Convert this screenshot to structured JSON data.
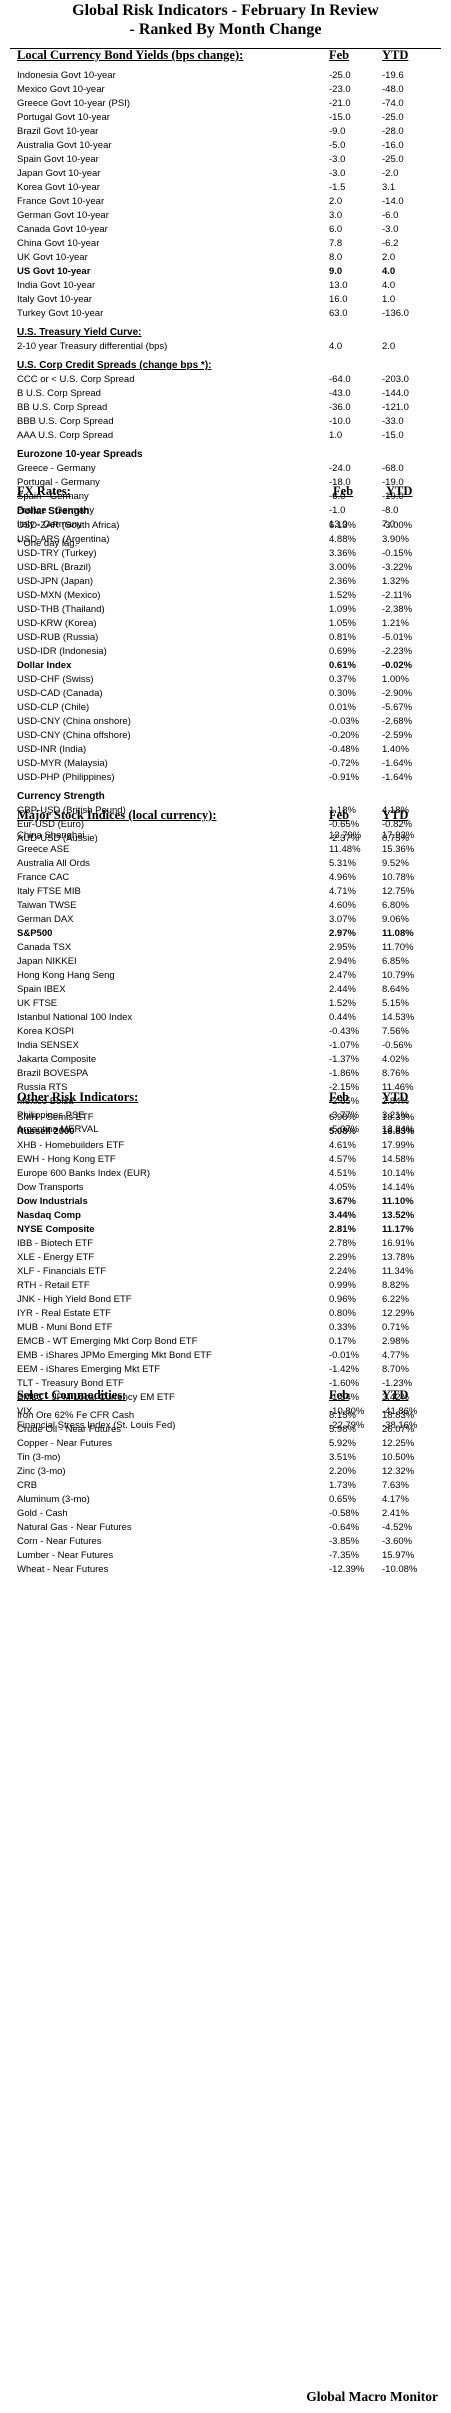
{
  "header": {
    "title_line1": "Global Risk Indicators - February In Review",
    "title_line2": "- Ranked By Month Change"
  },
  "footer": {
    "brand": "Global Macro Monitor"
  },
  "sections": [
    {
      "id": "bonds",
      "title": "Local Currency Bond Yields (bps change):",
      "col1": "Feb",
      "col2": "YTD",
      "blocks": [
        {
          "rows": [
            {
              "name": "Indonesia Govt 10-year",
              "v1": "-25.0",
              "v2": "-19.6"
            },
            {
              "name": "Mexico Govt 10-year",
              "v1": "-23.0",
              "v2": "-48.0"
            },
            {
              "name": "Greece Govt 10-year (PSI)",
              "v1": "-21.0",
              "v2": "-74.0"
            },
            {
              "name": "Portugal Govt 10-year",
              "v1": "-15.0",
              "v2": "-25.0"
            },
            {
              "name": "Brazil Govt 10-year",
              "v1": "-9.0",
              "v2": "-28.0"
            },
            {
              "name": "Australia Govt 10-year",
              "v1": "-5.0",
              "v2": "-16.0"
            },
            {
              "name": "Spain Govt 10-year",
              "v1": "-3.0",
              "v2": "-25.0"
            },
            {
              "name": "Japan Govt 10-year",
              "v1": "-3.0",
              "v2": "-2.0"
            },
            {
              "name": "Korea Govt 10-year",
              "v1": "-1.5",
              "v2": "3.1"
            },
            {
              "name": "France Govt 10-year",
              "v1": "2.0",
              "v2": "-14.0"
            },
            {
              "name": "German Govt 10-year",
              "v1": "3.0",
              "v2": "-6.0"
            },
            {
              "name": "Canada Govt 10-year",
              "v1": "6.0",
              "v2": "-3.0"
            },
            {
              "name": "China Govt 10-year",
              "v1": "7.8",
              "v2": "-6.2"
            },
            {
              "name": "UK Govt 10-year",
              "v1": "8.0",
              "v2": "2.0"
            },
            {
              "name": "US Govt 10-year",
              "v1": "9.0",
              "v2": "4.0",
              "bold": true
            },
            {
              "name": "India Govt 10-year",
              "v1": "13.0",
              "v2": "4.0"
            },
            {
              "name": "Italy Govt 10-year",
              "v1": "16.0",
              "v2": "1.0"
            },
            {
              "name": "Turkey Govt 10-year",
              "v1": "63.0",
              "v2": "-136.0"
            }
          ]
        },
        {
          "subtitle": "U.S. Treasury Yield Curve:",
          "underline": true,
          "rows": [
            {
              "name": "2-10 year Treasury differential (bps)",
              "v1": "4.0",
              "v2": "2.0"
            }
          ]
        },
        {
          "subtitle": "U.S. Corp Credit Spreads (change bps *):",
          "underline": true,
          "rows": [
            {
              "name": "CCC or < U.S. Corp Spread",
              "v1": "-64.0",
              "v2": "-203.0"
            },
            {
              "name": "B U.S. Corp Spread",
              "v1": "-43.0",
              "v2": "-144.0"
            },
            {
              "name": "BB U.S. Corp Spread",
              "v1": "-36.0",
              "v2": "-121.0"
            },
            {
              "name": "BBB U.S. Corp Spread",
              "v1": "-10.0",
              "v2": "-33.0"
            },
            {
              "name": "AAA U.S. Corp Spread",
              "v1": "1.0",
              "v2": "-15.0"
            }
          ]
        },
        {
          "subtitle": "Eurozone 10-year Spreads",
          "rows": [
            {
              "name": "Greece - Germany",
              "v1": "-24.0",
              "v2": "-68.0"
            },
            {
              "name": "Portugal - Germany",
              "v1": "-18.0",
              "v2": "-19.0"
            },
            {
              "name": "Spain - Germany",
              "v1": "-6.0",
              "v2": "-19.0"
            },
            {
              "name": "France - Germany",
              "v1": "-1.0",
              "v2": "-8.0"
            },
            {
              "name": "Italy - Germany",
              "v1": "13.0",
              "v2": "7.0"
            }
          ]
        }
      ],
      "note": "* One day lag."
    },
    {
      "id": "fx",
      "title": "FX Rates:",
      "col1": "Feb",
      "col2": "YTD",
      "ftype": true,
      "blocks": [
        {
          "subtitle": "Dollar Strength",
          "rows": [
            {
              "name": "USD-ZAR (South Africa)",
              "v1": "6.13%",
              "v2": "-3.00%"
            },
            {
              "name": "USD-ARS (Argentina)",
              "v1": "4.88%",
              "v2": "3.90%"
            },
            {
              "name": "USD-TRY (Turkey)",
              "v1": "3.36%",
              "v2": "-0.15%"
            },
            {
              "name": "USD-BRL (Brazil)",
              "v1": "3.00%",
              "v2": "-3.22%"
            },
            {
              "name": "USD-JPN (Japan)",
              "v1": "2.36%",
              "v2": "1.32%"
            },
            {
              "name": "USD-MXN  (Mexico)",
              "v1": "1.52%",
              "v2": "-2.11%"
            },
            {
              "name": "USD-THB  (Thailand)",
              "v1": "1.09%",
              "v2": "-2.38%"
            },
            {
              "name": "USD-KRW (Korea)",
              "v1": "1.05%",
              "v2": "1.21%"
            },
            {
              "name": "USD-RUB (Russia)",
              "v1": "0.81%",
              "v2": "-5.01%"
            },
            {
              "name": "USD-IDR (Indonesia)",
              "v1": "0.69%",
              "v2": "-2.23%"
            },
            {
              "name": "Dollar Index",
              "v1": "0.61%",
              "v2": "-0.02%",
              "bold": true
            },
            {
              "name": "USD-CHF (Swiss)",
              "v1": "0.37%",
              "v2": "1.00%"
            },
            {
              "name": "USD-CAD (Canada)",
              "v1": "0.30%",
              "v2": "-2.90%"
            },
            {
              "name": "USD-CLP (Chile)",
              "v1": "0.01%",
              "v2": "-5.67%"
            },
            {
              "name": "USD-CNY (China onshore)",
              "v1": "-0.03%",
              "v2": "-2.68%"
            },
            {
              "name": "USD-CNY (China offshore)",
              "v1": "-0.20%",
              "v2": "-2.59%"
            },
            {
              "name": "USD-INR (India)",
              "v1": "-0.48%",
              "v2": "1.40%"
            },
            {
              "name": "USD-MYR (Malaysia)",
              "v1": "-0.72%",
              "v2": "-1.64%"
            },
            {
              "name": "USD-PHP (Philippines)",
              "v1": "-0.91%",
              "v2": "-1.64%"
            }
          ]
        },
        {
          "subtitle": "Currency Strength",
          "rows": [
            {
              "name": "GBP-USD (British Pound)",
              "v1": "1.18%",
              "v2": "4.18%"
            },
            {
              "name": "Eur-USD (Euro)",
              "v1": "-0.65%",
              "v2": "-0.82%"
            },
            {
              "name": "AUD-USD (Aussie)",
              "v1": "-2.37%",
              "v2": "0.75%"
            }
          ]
        }
      ]
    },
    {
      "id": "stocks",
      "title": "Major Stock Indices (local currency):",
      "col1": "Feb",
      "col2": "YTD",
      "blocks": [
        {
          "rows": [
            {
              "name": "China Shanghai",
              "v1": "13.79%",
              "v2": "17.93%"
            },
            {
              "name": "Greece ASE",
              "v1": "11.48%",
              "v2": "15.36%"
            },
            {
              "name": "Australia All Ords",
              "v1": "5.31%",
              "v2": "9.52%"
            },
            {
              "name": "France CAC",
              "v1": "4.96%",
              "v2": "10.78%"
            },
            {
              "name": "Italy FTSE MIB",
              "v1": "4.71%",
              "v2": "12.75%"
            },
            {
              "name": "Taiwan  TWSE",
              "v1": "4.60%",
              "v2": "6.80%"
            },
            {
              "name": "German DAX",
              "v1": "3.07%",
              "v2": "9.06%"
            },
            {
              "name": "S&P500",
              "v1": "2.97%",
              "v2": "11.08%",
              "bold": true
            },
            {
              "name": "Canada TSX",
              "v1": "2.95%",
              "v2": "11.70%"
            },
            {
              "name": "Japan NIKKEI",
              "v1": "2.94%",
              "v2": "6.85%"
            },
            {
              "name": "Hong Kong Hang Seng",
              "v1": "2.47%",
              "v2": "10.79%"
            },
            {
              "name": "Spain IBEX",
              "v1": "2.44%",
              "v2": "8.64%"
            },
            {
              "name": "UK FTSE",
              "v1": "1.52%",
              "v2": "5.15%"
            },
            {
              "name": "Istanbul National 100 Index",
              "v1": "0.44%",
              "v2": "14.53%"
            },
            {
              "name": "Korea KOSPI",
              "v1": "-0.43%",
              "v2": "7.56%"
            },
            {
              "name": "India SENSEX",
              "v1": "-1.07%",
              "v2": "-0.56%"
            },
            {
              "name": "Jakarta Composite",
              "v1": "-1.37%",
              "v2": "4.02%"
            },
            {
              "name": "Brazil BOVESPA",
              "v1": "-1.86%",
              "v2": "8.76%"
            },
            {
              "name": "Russia RTS",
              "v1": "-2.15%",
              "v2": "11.46%"
            },
            {
              "name": "Mexico Bolsa",
              "v1": "-2.65%",
              "v2": "2.84%"
            },
            {
              "name": "Philippines PSE",
              "v1": "-3.77%",
              "v2": "3.21%"
            },
            {
              "name": "Argentina MERVAL",
              "v1": "-5.07%",
              "v2": "13.84%"
            }
          ]
        }
      ]
    },
    {
      "id": "risk",
      "title": "Other Risk Indicators:",
      "col1": "Feb",
      "col2": "YTD",
      "blocks": [
        {
          "rows": [
            {
              "name": "SMH - Semis ETF",
              "v1": "6.98%",
              "v2": "18.39%"
            },
            {
              "name": "Russell 2000",
              "v1": "5.08%",
              "v2": "16.83%",
              "bold": true
            },
            {
              "name": "XHB - Homebuilders ETF",
              "v1": "4.61%",
              "v2": "17.99%"
            },
            {
              "name": "EWH - Hong Kong ETF",
              "v1": "4.57%",
              "v2": "14.58%"
            },
            {
              "name": "Europe 600 Banks Index (EUR)",
              "v1": "4.51%",
              "v2": "10.14%"
            },
            {
              "name": "Dow Transports",
              "v1": "4.05%",
              "v2": "14.14%"
            },
            {
              "name": "Dow Industrials",
              "v1": "3.67%",
              "v2": "11.10%",
              "bold": true
            },
            {
              "name": "Nasdaq Comp",
              "v1": "3.44%",
              "v2": "13.52%",
              "bold": true
            },
            {
              "name": "NYSE Composite",
              "v1": "2.81%",
              "v2": "11.17%",
              "bold": true
            },
            {
              "name": "IBB - Biotech ETF",
              "v1": "2.78%",
              "v2": "16.91%"
            },
            {
              "name": "XLE - Energy ETF",
              "v1": "2.29%",
              "v2": "13.78%"
            },
            {
              "name": "XLF - Financials ETF",
              "v1": "2.24%",
              "v2": "11.34%"
            },
            {
              "name": "RTH - Retail ETF",
              "v1": "0.99%",
              "v2": "8.82%"
            },
            {
              "name": "JNK - High Yield Bond ETF",
              "v1": "0.96%",
              "v2": "6.22%"
            },
            {
              "name": "IYR - Real Estate ETF",
              "v1": "0.80%",
              "v2": "12.29%"
            },
            {
              "name": "MUB - Muni Bond ETF",
              "v1": "0.33%",
              "v2": "0.71%"
            },
            {
              "name": "EMCB - WT Emerging Mkt Corp Bond ETF",
              "v1": "0.17%",
              "v2": "2.98%"
            },
            {
              "name": "EMB - iShares JPMo Emerging Mkt Bond ETF",
              "v1": "-0.01%",
              "v2": "4.77%"
            },
            {
              "name": "EEM - iShares Emerging Mkt ETF",
              "v1": "-1.42%",
              "v2": "8.70%"
            },
            {
              "name": "TLT - Treasury Bond ETF",
              "v1": "-1.60%",
              "v2": "-1.23%"
            },
            {
              "name": "EMLC - JPM Local Currency EM ETF",
              "v1": "-1.84%",
              "v2": "3.42%"
            },
            {
              "name": "VIX",
              "v1": "-10.80%",
              "v2": "-41.86%"
            },
            {
              "name": "Financial Stress Index (St. Louis Fed)",
              "v1": "-22.79%",
              "v2": "-38.16%"
            }
          ]
        }
      ]
    },
    {
      "id": "commodities",
      "title": "Select Commodities:",
      "col1": "Feb",
      "col2": "YTD",
      "blocks": [
        {
          "rows": [
            {
              "name": "Iron Ore 62% Fe CFR Cash",
              "v1": "8.15%",
              "v2": "18.83%"
            },
            {
              "name": "Crude Oil - Near Futures",
              "v1": "5.98%",
              "v2": "26.07%"
            },
            {
              "name": "Copper - Near Futures",
              "v1": "5.92%",
              "v2": "12.25%"
            },
            {
              "name": "Tin (3-mo)",
              "v1": "3.51%",
              "v2": "10.50%"
            },
            {
              "name": "Zinc (3-mo)",
              "v1": "2.20%",
              "v2": "12.32%"
            },
            {
              "name": "CRB",
              "v1": "1.73%",
              "v2": "7.63%"
            },
            {
              "name": "Aluminum (3-mo)",
              "v1": "0.65%",
              "v2": "4.17%"
            },
            {
              "name": "Gold - Cash",
              "v1": "-0.58%",
              "v2": "2.41%"
            },
            {
              "name": "Natural Gas - Near Futures",
              "v1": "-0.64%",
              "v2": "-4.52%"
            },
            {
              "name": "Corn - Near Futures",
              "v1": "-3.85%",
              "v2": "-3.60%"
            },
            {
              "name": "Lumber - Near Futures",
              "v1": "-7.35%",
              "v2": "15.97%"
            },
            {
              "name": "Wheat - Near Futures",
              "v1": "-12.39%",
              "v2": "-10.08%"
            }
          ]
        }
      ]
    }
  ]
}
